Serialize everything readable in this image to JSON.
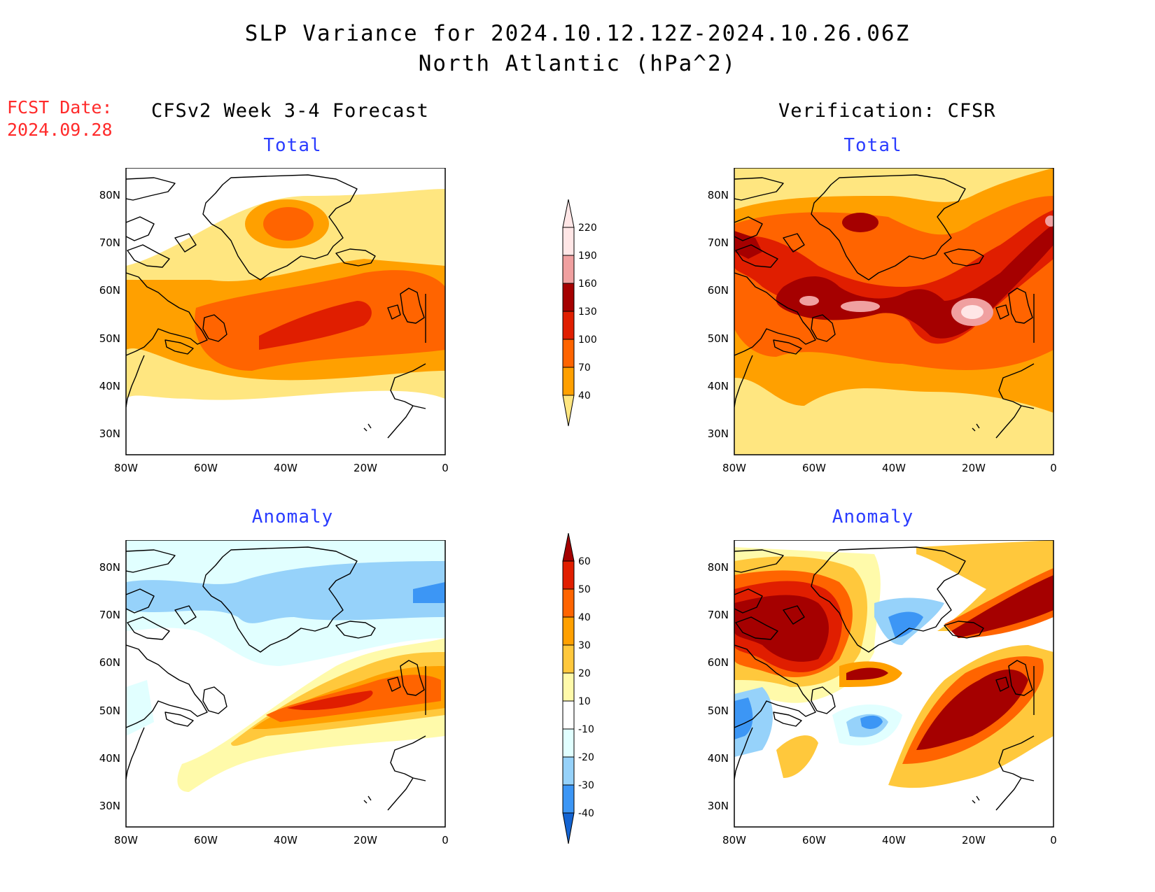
{
  "title_line1": "SLP Variance for 2024.10.12.12Z-2024.10.26.06Z",
  "title_line2": "North Atlantic (hPa^2)",
  "fcst_label": "FCST Date:",
  "fcst_date": "2024.09.28",
  "left_header": "CFSv2 Week 3-4 Forecast",
  "right_header": "Verification: CFSR",
  "panels": {
    "top_left_title": "Total",
    "top_right_title": "Total",
    "bottom_left_title": "Anomaly",
    "bottom_right_title": "Anomaly"
  },
  "axes": {
    "lat_labels": [
      "80N",
      "70N",
      "60N",
      "50N",
      "40N",
      "30N"
    ],
    "lon_labels": [
      "80W",
      "60W",
      "40W",
      "20W",
      "0"
    ]
  },
  "total_colorbar": {
    "labels": [
      "40",
      "70",
      "100",
      "130",
      "160",
      "190",
      "220"
    ],
    "colors": [
      "#ffe680",
      "#ffa000",
      "#ff6400",
      "#e01e00",
      "#a50000",
      "#f0a0a0",
      "#ffe6e6"
    ]
  },
  "anomaly_colorbar": {
    "labels": [
      "-40",
      "-30",
      "-20",
      "-10",
      "10",
      "20",
      "30",
      "40",
      "50",
      "60"
    ],
    "colors": [
      "#1464d2",
      "#3c96f5",
      "#96d2fa",
      "#e1ffff",
      "#ffffff",
      "#fffaaa",
      "#ffc83c",
      "#ffa000",
      "#ff6400",
      "#e11e00",
      "#a50000"
    ]
  },
  "colors": {
    "fcst_text": "#ff2a2a",
    "panel_title": "#2a3cff"
  }
}
